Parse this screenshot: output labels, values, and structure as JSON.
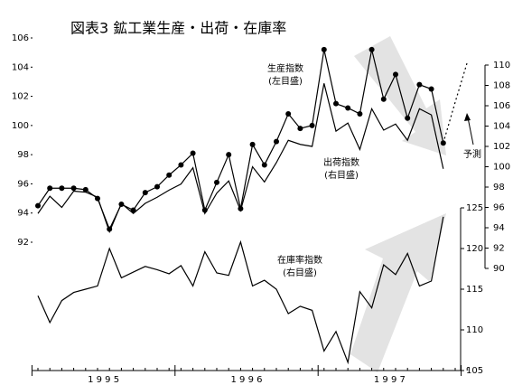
{
  "chart_data": {
    "type": "line",
    "title": "図表3 鉱工業生産・出荷・在庫率",
    "categories": [
      null,
      null,
      null,
      null,
      null,
      null,
      null,
      null,
      null,
      null,
      null,
      null,
      null,
      null,
      null,
      null,
      null,
      null,
      null,
      null,
      null,
      null,
      null,
      null,
      null,
      null,
      null,
      null,
      null,
      null,
      null,
      null,
      null,
      null,
      null,
      null,
      null
    ],
    "x_group_labels": [
      "1 9 9 5",
      "1 9 9 6",
      "1 9 9 7"
    ],
    "series": [
      {
        "name": "生産指数",
        "color": "#000000",
        "axis": "y",
        "markers": true,
        "dashed": false,
        "values": [
          94.5,
          95.7,
          95.7,
          95.7,
          95.6,
          95.0,
          92.9,
          94.6,
          94.2,
          95.4,
          95.8,
          96.6,
          97.3,
          98.1,
          94.2,
          96.1,
          98.0,
          94.3,
          98.7,
          97.3,
          98.9,
          100.8,
          99.8,
          100.0,
          105.2,
          101.5,
          101.2,
          100.8,
          105.2,
          101.8,
          103.5,
          100.5,
          102.8,
          102.5,
          98.8,
          null,
          null
        ]
      },
      {
        "name": "予測",
        "color": "#000000",
        "axis": "y",
        "markers": false,
        "dashed": true,
        "values": [
          null,
          null,
          null,
          null,
          null,
          null,
          null,
          null,
          null,
          null,
          null,
          null,
          null,
          null,
          null,
          null,
          null,
          null,
          null,
          null,
          null,
          null,
          null,
          null,
          null,
          null,
          null,
          null,
          null,
          null,
          null,
          null,
          null,
          null,
          98.8,
          101.6,
          104.3
        ]
      },
      {
        "name": "出荷指数",
        "color": "#000000",
        "axis": "y2",
        "markers": false,
        "dashed": false,
        "values": [
          95.4,
          97.1,
          96.0,
          97.6,
          97.5,
          97.0,
          93.6,
          96.4,
          95.4,
          96.4,
          97.0,
          97.7,
          98.3,
          99.9,
          95.4,
          97.4,
          98.6,
          95.7,
          100.0,
          98.5,
          100.4,
          102.6,
          102.2,
          102.0,
          108.2,
          103.5,
          104.3,
          101.7,
          105.7,
          103.6,
          104.2,
          102.6,
          105.7,
          105.1,
          99.8,
          null,
          null
        ]
      },
      {
        "name": "在庫率指数",
        "color": "#000000",
        "axis": "y3",
        "markers": false,
        "dashed": false,
        "values": [
          114.2,
          110.9,
          113.6,
          114.6,
          115.0,
          115.4,
          120.0,
          116.4,
          117.1,
          117.8,
          117.4,
          116.9,
          117.9,
          115.4,
          119.6,
          117.0,
          116.7,
          120.8,
          115.4,
          116.1,
          115.0,
          112.0,
          112.9,
          112.4,
          107.4,
          109.8,
          106.0,
          114.7,
          112.7,
          118.0,
          116.8,
          119.4,
          115.4,
          116.0,
          123.9,
          null,
          null
        ]
      }
    ],
    "annotations": [
      "生産指数",
      "(左目盛)",
      "出荷指数",
      "(右目盛)",
      "在庫率指数",
      "(右目盛)",
      "予測"
    ],
    "ylim": [
      92,
      106
    ],
    "yticks": [
      92,
      94,
      96,
      98,
      100,
      102,
      104,
      106
    ],
    "y2lim": [
      90,
      110
    ],
    "y2ticks": [
      90,
      92,
      94,
      96,
      98,
      100,
      102,
      104,
      106,
      108,
      110
    ],
    "y3lim": [
      105,
      125
    ],
    "y3ticks": [
      105,
      110,
      115,
      120,
      125
    ]
  }
}
